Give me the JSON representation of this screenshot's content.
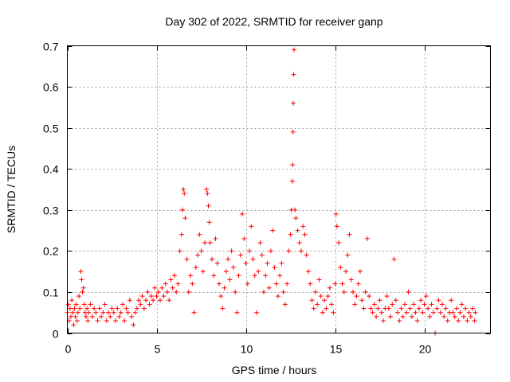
{
  "chart_data": {
    "type": "scatter",
    "title": "Day 302 of 2022, SRMTID for receiver ganp",
    "xlabel": "GPS time / hours",
    "ylabel": "SRMTID / TECUs",
    "xlim": [
      0,
      23.7
    ],
    "ylim": [
      0,
      0.7
    ],
    "xticks": [
      0,
      5,
      10,
      15,
      20
    ],
    "yticks": [
      0,
      0.1,
      0.2,
      0.3,
      0.4,
      0.5,
      0.6,
      0.7
    ],
    "xtick_labels": [
      "0",
      "5",
      "10",
      "15",
      "20"
    ],
    "ytick_labels": [
      "0",
      "0.1",
      "0.2",
      "0.3",
      "0.4",
      "0.5",
      "0.6",
      "0.7"
    ],
    "grid": true,
    "marker": "+",
    "color": "#ff0000",
    "series": [
      {
        "name": "SRMTID",
        "points": [
          [
            0.0,
            0.05
          ],
          [
            0.05,
            0.07
          ],
          [
            0.1,
            0.03
          ],
          [
            0.15,
            0.06
          ],
          [
            0.2,
            0.04
          ],
          [
            0.25,
            0.08
          ],
          [
            0.3,
            0.05
          ],
          [
            0.35,
            0.02
          ],
          [
            0.4,
            0.06
          ],
          [
            0.45,
            0.04
          ],
          [
            0.5,
            0.07
          ],
          [
            0.55,
            0.03
          ],
          [
            0.6,
            0.05
          ],
          [
            0.65,
            0.09
          ],
          [
            0.7,
            0.06
          ],
          [
            0.75,
            0.15
          ],
          [
            0.8,
            0.13
          ],
          [
            0.85,
            0.1
          ],
          [
            0.9,
            0.11
          ],
          [
            0.95,
            0.07
          ],
          [
            1.0,
            0.05
          ],
          [
            1.05,
            0.04
          ],
          [
            1.1,
            0.06
          ],
          [
            1.15,
            0.03
          ],
          [
            1.2,
            0.05
          ],
          [
            1.3,
            0.07
          ],
          [
            1.4,
            0.04
          ],
          [
            1.5,
            0.06
          ],
          [
            1.6,
            0.05
          ],
          [
            1.7,
            0.03
          ],
          [
            1.8,
            0.06
          ],
          [
            1.9,
            0.04
          ],
          [
            2.0,
            0.05
          ],
          [
            2.1,
            0.07
          ],
          [
            2.2,
            0.03
          ],
          [
            2.3,
            0.05
          ],
          [
            2.4,
            0.04
          ],
          [
            2.5,
            0.06
          ],
          [
            2.6,
            0.05
          ],
          [
            2.7,
            0.03
          ],
          [
            2.8,
            0.06
          ],
          [
            2.9,
            0.04
          ],
          [
            3.0,
            0.05
          ],
          [
            3.1,
            0.07
          ],
          [
            3.2,
            0.03
          ],
          [
            3.3,
            0.06
          ],
          [
            3.4,
            0.05
          ],
          [
            3.5,
            0.08
          ],
          [
            3.6,
            0.04
          ],
          [
            3.7,
            0.02
          ],
          [
            3.8,
            0.05
          ],
          [
            3.9,
            0.06
          ],
          [
            4.0,
            0.08
          ],
          [
            4.1,
            0.07
          ],
          [
            4.2,
            0.09
          ],
          [
            4.3,
            0.06
          ],
          [
            4.4,
            0.08
          ],
          [
            4.5,
            0.1
          ],
          [
            4.6,
            0.07
          ],
          [
            4.7,
            0.09
          ],
          [
            4.8,
            0.08
          ],
          [
            4.9,
            0.11
          ],
          [
            5.0,
            0.09
          ],
          [
            5.1,
            0.1
          ],
          [
            5.2,
            0.08
          ],
          [
            5.3,
            0.11
          ],
          [
            5.4,
            0.09
          ],
          [
            5.5,
            0.12
          ],
          [
            5.6,
            0.1
          ],
          [
            5.7,
            0.08
          ],
          [
            5.8,
            0.13
          ],
          [
            5.9,
            0.11
          ],
          [
            6.0,
            0.14
          ],
          [
            6.1,
            0.1
          ],
          [
            6.2,
            0.12
          ],
          [
            6.3,
            0.2
          ],
          [
            6.4,
            0.24
          ],
          [
            6.45,
            0.3
          ],
          [
            6.5,
            0.35
          ],
          [
            6.55,
            0.34
          ],
          [
            6.6,
            0.28
          ],
          [
            6.7,
            0.18
          ],
          [
            6.8,
            0.1
          ],
          [
            6.9,
            0.14
          ],
          [
            7.0,
            0.12
          ],
          [
            7.1,
            0.05
          ],
          [
            7.2,
            0.16
          ],
          [
            7.3,
            0.19
          ],
          [
            7.4,
            0.24
          ],
          [
            7.5,
            0.2
          ],
          [
            7.6,
            0.15
          ],
          [
            7.7,
            0.22
          ],
          [
            7.8,
            0.35
          ],
          [
            7.85,
            0.34
          ],
          [
            7.9,
            0.31
          ],
          [
            7.95,
            0.27
          ],
          [
            8.0,
            0.22
          ],
          [
            8.1,
            0.18
          ],
          [
            8.2,
            0.14
          ],
          [
            8.3,
            0.23
          ],
          [
            8.4,
            0.17
          ],
          [
            8.5,
            0.12
          ],
          [
            8.6,
            0.09
          ],
          [
            8.7,
            0.06
          ],
          [
            8.8,
            0.11
          ],
          [
            8.9,
            0.15
          ],
          [
            9.0,
            0.18
          ],
          [
            9.1,
            0.13
          ],
          [
            9.2,
            0.2
          ],
          [
            9.3,
            0.16
          ],
          [
            9.4,
            0.1
          ],
          [
            9.5,
            0.05
          ],
          [
            9.6,
            0.14
          ],
          [
            9.7,
            0.19
          ],
          [
            9.8,
            0.29
          ],
          [
            9.9,
            0.23
          ],
          [
            10.0,
            0.17
          ],
          [
            10.1,
            0.12
          ],
          [
            10.2,
            0.2
          ],
          [
            10.3,
            0.26
          ],
          [
            10.4,
            0.18
          ],
          [
            10.5,
            0.14
          ],
          [
            10.6,
            0.05
          ],
          [
            10.7,
            0.15
          ],
          [
            10.8,
            0.22
          ],
          [
            10.9,
            0.19
          ],
          [
            11.0,
            0.1
          ],
          [
            11.1,
            0.14
          ],
          [
            11.2,
            0.17
          ],
          [
            11.3,
            0.11
          ],
          [
            11.4,
            0.2
          ],
          [
            11.5,
            0.25
          ],
          [
            11.6,
            0.16
          ],
          [
            11.7,
            0.12
          ],
          [
            11.8,
            0.09
          ],
          [
            11.9,
            0.14
          ],
          [
            12.0,
            0.17
          ],
          [
            12.1,
            0.1
          ],
          [
            12.2,
            0.07
          ],
          [
            12.3,
            0.12
          ],
          [
            12.4,
            0.2
          ],
          [
            12.5,
            0.24
          ],
          [
            12.55,
            0.3
          ],
          [
            12.6,
            0.37
          ],
          [
            12.62,
            0.41
          ],
          [
            12.64,
            0.49
          ],
          [
            12.66,
            0.56
          ],
          [
            12.68,
            0.63
          ],
          [
            12.7,
            0.69
          ],
          [
            12.75,
            0.3
          ],
          [
            12.8,
            0.28
          ],
          [
            12.9,
            0.25
          ],
          [
            13.0,
            0.22
          ],
          [
            13.1,
            0.2
          ],
          [
            13.2,
            0.26
          ],
          [
            13.3,
            0.24
          ],
          [
            13.4,
            0.19
          ],
          [
            13.5,
            0.15
          ],
          [
            13.6,
            0.12
          ],
          [
            13.7,
            0.08
          ],
          [
            13.8,
            0.06
          ],
          [
            13.9,
            0.1
          ],
          [
            14.0,
            0.07
          ],
          [
            14.1,
            0.13
          ],
          [
            14.2,
            0.09
          ],
          [
            14.3,
            0.05
          ],
          [
            14.4,
            0.08
          ],
          [
            14.5,
            0.06
          ],
          [
            14.6,
            0.09
          ],
          [
            14.7,
            0.11
          ],
          [
            14.8,
            0.07
          ],
          [
            14.9,
            0.05
          ],
          [
            15.0,
            0.12
          ],
          [
            15.05,
            0.29
          ],
          [
            15.1,
            0.26
          ],
          [
            15.2,
            0.22
          ],
          [
            15.3,
            0.16
          ],
          [
            15.4,
            0.12
          ],
          [
            15.5,
            0.1
          ],
          [
            15.6,
            0.15
          ],
          [
            15.7,
            0.19
          ],
          [
            15.8,
            0.24
          ],
          [
            15.9,
            0.13
          ],
          [
            16.0,
            0.1
          ],
          [
            16.1,
            0.07
          ],
          [
            16.2,
            0.09
          ],
          [
            16.3,
            0.12
          ],
          [
            16.4,
            0.15
          ],
          [
            16.5,
            0.08
          ],
          [
            16.6,
            0.06
          ],
          [
            16.7,
            0.1
          ],
          [
            16.8,
            0.23
          ],
          [
            16.9,
            0.09
          ],
          [
            17.0,
            0.06
          ],
          [
            17.1,
            0.05
          ],
          [
            17.2,
            0.07
          ],
          [
            17.3,
            0.04
          ],
          [
            17.4,
            0.06
          ],
          [
            17.5,
            0.08
          ],
          [
            17.6,
            0.05
          ],
          [
            17.7,
            0.03
          ],
          [
            17.8,
            0.06
          ],
          [
            17.9,
            0.09
          ],
          [
            18.0,
            0.06
          ],
          [
            18.1,
            0.04
          ],
          [
            18.2,
            0.07
          ],
          [
            18.3,
            0.18
          ],
          [
            18.4,
            0.08
          ],
          [
            18.5,
            0.05
          ],
          [
            18.6,
            0.03
          ],
          [
            18.7,
            0.06
          ],
          [
            18.8,
            0.04
          ],
          [
            18.9,
            0.07
          ],
          [
            19.0,
            0.05
          ],
          [
            19.1,
            0.1
          ],
          [
            19.2,
            0.06
          ],
          [
            19.3,
            0.04
          ],
          [
            19.4,
            0.07
          ],
          [
            19.5,
            0.05
          ],
          [
            19.6,
            0.03
          ],
          [
            19.7,
            0.06
          ],
          [
            19.8,
            0.08
          ],
          [
            19.9,
            0.05
          ],
          [
            20.0,
            0.07
          ],
          [
            20.1,
            0.09
          ],
          [
            20.2,
            0.06
          ],
          [
            20.3,
            0.04
          ],
          [
            20.4,
            0.07
          ],
          [
            20.5,
            0.05
          ],
          [
            20.6,
            0.0
          ],
          [
            20.7,
            0.06
          ],
          [
            20.8,
            0.08
          ],
          [
            20.9,
            0.05
          ],
          [
            21.0,
            0.07
          ],
          [
            21.1,
            0.04
          ],
          [
            21.2,
            0.06
          ],
          [
            21.3,
            0.03
          ],
          [
            21.4,
            0.05
          ],
          [
            21.5,
            0.08
          ],
          [
            21.6,
            0.05
          ],
          [
            21.7,
            0.04
          ],
          [
            21.8,
            0.06
          ],
          [
            21.9,
            0.03
          ],
          [
            22.0,
            0.05
          ],
          [
            22.1,
            0.07
          ],
          [
            22.2,
            0.04
          ],
          [
            22.3,
            0.06
          ],
          [
            22.4,
            0.03
          ],
          [
            22.5,
            0.05
          ],
          [
            22.6,
            0.04
          ],
          [
            22.7,
            0.06
          ],
          [
            22.8,
            0.03
          ],
          [
            22.85,
            0.05
          ]
        ]
      }
    ]
  }
}
